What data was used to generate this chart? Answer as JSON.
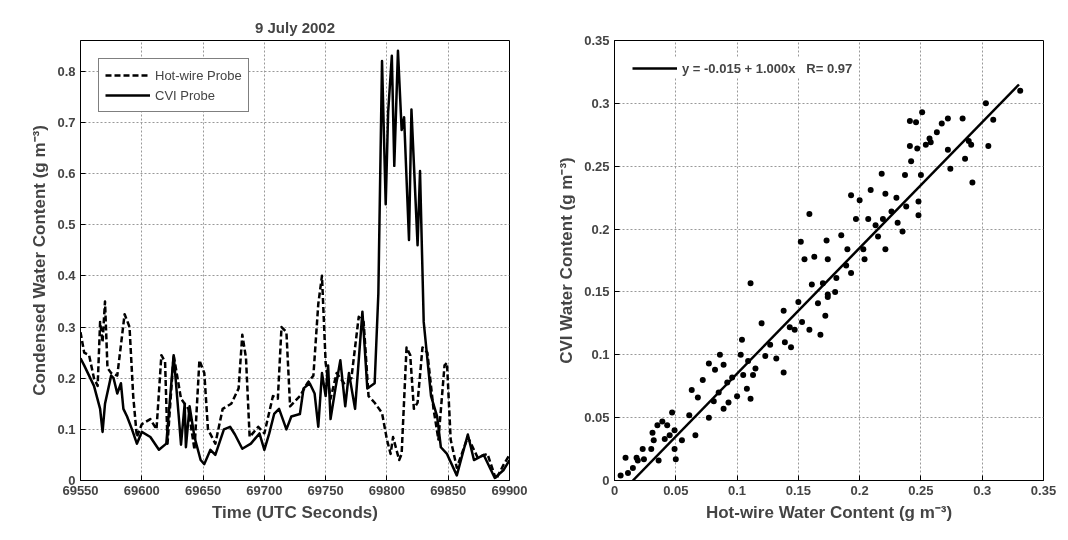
{
  "chart_data": [
    {
      "type": "line",
      "title": "9 July 2002",
      "xlabel": "Time (UTC Seconds)",
      "ylabel": "Condensed Water Content (g m⁻³)",
      "xlim": [
        69550,
        69900
      ],
      "ylim": [
        0,
        0.86
      ],
      "xticks": [
        69550,
        69600,
        69650,
        69700,
        69750,
        69800,
        69850,
        69900
      ],
      "yticks": [
        0,
        0.1,
        0.2,
        0.3,
        0.4,
        0.5,
        0.6,
        0.7,
        0.8
      ],
      "grid": true,
      "legend": "top left",
      "marker": "none",
      "series": [
        {
          "name": "Hot-wire Probe",
          "color": "#000000",
          "line_style": "dashed",
          "x": [
            69550,
            69553,
            69557,
            69561,
            69564,
            69566,
            69568,
            69570,
            69572,
            69575,
            69580,
            69586,
            69590,
            69593,
            69596,
            69600,
            69607,
            69612,
            69616,
            69619,
            69621,
            69626,
            69632,
            69638,
            69643,
            69647,
            69651,
            69654,
            69660,
            69666,
            69673,
            69679,
            69682,
            69685,
            69688,
            69695,
            69700,
            69707,
            69711,
            69714,
            69718,
            69721,
            69729,
            69735,
            69740,
            69744,
            69747,
            69750,
            69754,
            69759,
            69765,
            69771,
            69777,
            69781,
            69785,
            69790,
            69796,
            69800,
            69803,
            69805,
            69810,
            69812,
            69816,
            69819,
            69822,
            69825,
            69829,
            69833,
            69838,
            69842,
            69847,
            69849,
            69852,
            69857,
            69866,
            69874,
            69882,
            69889,
            69895,
            69900
          ],
          "values": [
            0.29,
            0.25,
            0.245,
            0.2,
            0.185,
            0.31,
            0.27,
            0.35,
            0.22,
            0.21,
            0.205,
            0.325,
            0.3,
            0.165,
            0.085,
            0.11,
            0.12,
            0.1,
            0.245,
            0.232,
            0.072,
            0.245,
            0.16,
            0.14,
            0.06,
            0.235,
            0.21,
            0.1,
            0.072,
            0.14,
            0.15,
            0.18,
            0.285,
            0.24,
            0.085,
            0.105,
            0.092,
            0.165,
            0.16,
            0.3,
            0.29,
            0.145,
            0.165,
            0.19,
            0.205,
            0.345,
            0.4,
            0.23,
            0.16,
            0.21,
            0.19,
            0.2,
            0.32,
            0.31,
            0.165,
            0.152,
            0.132,
            0.08,
            0.052,
            0.085,
            0.04,
            0.052,
            0.26,
            0.245,
            0.14,
            0.152,
            0.26,
            0.25,
            0.14,
            0.08,
            0.225,
            0.23,
            0.08,
            0.025,
            0.085,
            0.045,
            0.052,
            0.002,
            0.03,
            0.05
          ]
        },
        {
          "name": "CVI Probe",
          "color": "#000000",
          "line_style": "solid",
          "x": [
            69550,
            69553,
            69561,
            69566,
            69568,
            69570,
            69575,
            69577,
            69580,
            69583,
            69585,
            69588,
            69592,
            69596,
            69600,
            69607,
            69614,
            69620,
            69626,
            69630,
            69632,
            69635,
            69636,
            69639,
            69643,
            69648,
            69651,
            69656,
            69660,
            69667,
            69672,
            69676,
            69682,
            69689,
            69696,
            69700,
            69704,
            69708,
            69712,
            69718,
            69722,
            69729,
            69732,
            69737,
            69741,
            69744,
            69747,
            69750,
            69752,
            69754,
            69758,
            69762,
            69766,
            69769,
            69774,
            69780,
            69784,
            69790,
            69793,
            69796,
            69799,
            69801,
            69804,
            69806,
            69809,
            69812,
            69814,
            69818,
            69820,
            69825,
            69827,
            69830,
            69836,
            69841,
            69844,
            69849,
            69857,
            69866,
            69871,
            69879,
            69888,
            69895,
            69900
          ],
          "values": [
            0.239,
            0.225,
            0.185,
            0.14,
            0.095,
            0.15,
            0.205,
            0.2,
            0.17,
            0.19,
            0.14,
            0.125,
            0.1,
            0.072,
            0.095,
            0.085,
            0.06,
            0.072,
            0.245,
            0.13,
            0.07,
            0.15,
            0.065,
            0.145,
            0.085,
            0.04,
            0.032,
            0.06,
            0.05,
            0.1,
            0.105,
            0.09,
            0.062,
            0.072,
            0.092,
            0.06,
            0.092,
            0.13,
            0.14,
            0.1,
            0.125,
            0.13,
            0.18,
            0.19,
            0.17,
            0.105,
            0.21,
            0.165,
            0.225,
            0.12,
            0.18,
            0.235,
            0.145,
            0.21,
            0.14,
            0.33,
            0.18,
            0.19,
            0.365,
            0.82,
            0.54,
            0.72,
            0.83,
            0.615,
            0.84,
            0.685,
            0.71,
            0.47,
            0.725,
            0.46,
            0.605,
            0.31,
            0.165,
            0.125,
            0.065,
            0.052,
            0.01,
            0.09,
            0.04,
            0.05,
            0.005,
            0.02,
            0.04
          ]
        }
      ]
    },
    {
      "type": "scatter",
      "xlabel": "Hot-wire Water Content (g m⁻³)",
      "ylabel": "CVI Water Content (g m⁻³)",
      "xlim": [
        0,
        0.35
      ],
      "ylim": [
        0,
        0.35
      ],
      "xticks": [
        0,
        0.05,
        0.1,
        0.15,
        0.2,
        0.25,
        0.3,
        0.35
      ],
      "yticks": [
        0,
        0.05,
        0.1,
        0.15,
        0.2,
        0.25,
        0.3,
        0.35
      ],
      "grid": true,
      "legend": "top left",
      "marker": "circle",
      "series": [
        {
          "color": "#000000",
          "x": [
            0.005,
            0.009,
            0.011,
            0.015,
            0.018,
            0.019,
            0.023,
            0.024,
            0.03,
            0.031,
            0.032,
            0.035,
            0.036,
            0.039,
            0.041,
            0.043,
            0.045,
            0.047,
            0.049,
            0.05,
            0.049,
            0.055,
            0.061,
            0.063,
            0.066,
            0.068,
            0.072,
            0.077,
            0.077,
            0.081,
            0.082,
            0.085,
            0.086,
            0.089,
            0.089,
            0.092,
            0.093,
            0.096,
            0.1,
            0.103,
            0.104,
            0.105,
            0.108,
            0.109,
            0.111,
            0.113,
            0.111,
            0.115,
            0.12,
            0.123,
            0.127,
            0.132,
            0.138,
            0.139,
            0.138,
            0.143,
            0.144,
            0.147,
            0.15,
            0.152,
            0.153,
            0.155,
            0.159,
            0.159,
            0.161,
            0.163,
            0.166,
            0.168,
            0.17,
            0.173,
            0.174,
            0.172,
            0.174,
            0.174,
            0.18,
            0.181,
            0.185,
            0.189,
            0.19,
            0.193,
            0.193,
            0.197,
            0.2,
            0.203,
            0.204,
            0.207,
            0.209,
            0.213,
            0.215,
            0.218,
            0.219,
            0.221,
            0.221,
            0.226,
            0.23,
            0.231,
            0.235,
            0.237,
            0.238,
            0.241,
            0.241,
            0.242,
            0.246,
            0.247,
            0.248,
            0.248,
            0.25,
            0.251,
            0.254,
            0.257,
            0.258,
            0.263,
            0.267,
            0.272,
            0.272,
            0.274,
            0.284,
            0.286,
            0.289,
            0.291,
            0.292,
            0.303,
            0.305,
            0.309,
            0.331
          ],
          "values": [
            0.004,
            0.018,
            0.006,
            0.01,
            0.018,
            0.016,
            0.025,
            0.017,
            0.025,
            0.038,
            0.032,
            0.044,
            0.016,
            0.047,
            0.033,
            0.044,
            0.036,
            0.054,
            0.04,
            0.017,
            0.025,
            0.032,
            0.052,
            0.072,
            0.036,
            0.066,
            0.08,
            0.093,
            0.05,
            0.063,
            0.088,
            0.07,
            0.1,
            0.092,
            0.057,
            0.078,
            0.062,
            0.082,
            0.067,
            0.1,
            0.112,
            0.084,
            0.073,
            0.095,
            0.065,
            0.084,
            0.157,
            0.089,
            0.125,
            0.099,
            0.108,
            0.097,
            0.135,
            0.11,
            0.086,
            0.122,
            0.106,
            0.12,
            0.142,
            0.19,
            0.126,
            0.176,
            0.212,
            0.12,
            0.156,
            0.178,
            0.141,
            0.116,
            0.157,
            0.191,
            0.146,
            0.131,
            0.148,
            0.176,
            0.15,
            0.161,
            0.195,
            0.171,
            0.184,
            0.165,
            0.227,
            0.208,
            0.223,
            0.184,
            0.176,
            0.208,
            0.231,
            0.203,
            0.194,
            0.244,
            0.208,
            0.228,
            0.184,
            0.214,
            0.225,
            0.205,
            0.198,
            0.243,
            0.218,
            0.286,
            0.266,
            0.254,
            0.285,
            0.264,
            0.222,
            0.211,
            0.243,
            0.293,
            0.267,
            0.272,
            0.269,
            0.277,
            0.284,
            0.263,
            0.288,
            0.248,
            0.288,
            0.256,
            0.27,
            0.267,
            0.237,
            0.3,
            0.266,
            0.287,
            0.31
          ]
        },
        {
          "type": "line",
          "name": "y = -0.015 + 1.000x   R= 0.97",
          "color": "#000000",
          "line_style": "solid",
          "marker": "none",
          "x": [
            0.015,
            0.33
          ],
          "values": [
            0,
            0.315
          ]
        }
      ]
    }
  ]
}
